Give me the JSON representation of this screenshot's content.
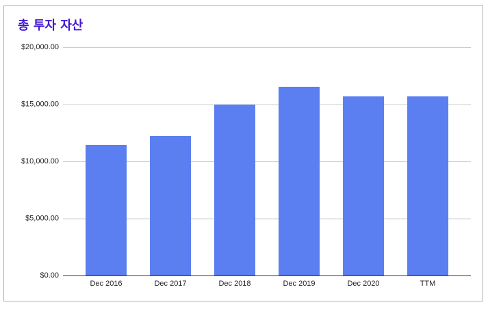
{
  "chart_data": {
    "type": "bar",
    "title": "총 투자 자산",
    "categories": [
      "Dec 2016",
      "Dec 2017",
      "Dec 2018",
      "Dec 2019",
      "Dec 2020",
      "TTM"
    ],
    "values": [
      11440,
      12220,
      14970,
      16530,
      15690,
      15690
    ],
    "color": "#5b7ff0",
    "ylim": [
      0,
      20000
    ],
    "yticks": [
      {
        "value": 0,
        "label": "$0.00"
      },
      {
        "value": 5000,
        "label": "$5,000.00"
      },
      {
        "value": 10000,
        "label": "$10,000.00"
      },
      {
        "value": 15000,
        "label": "$15,000.00"
      },
      {
        "value": 20000,
        "label": "$20,000.00"
      }
    ],
    "grid": true
  }
}
